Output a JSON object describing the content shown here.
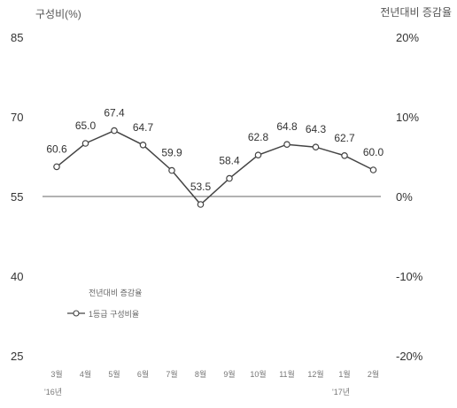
{
  "chart_data": {
    "type": "line",
    "left_axis_title": "구성비(%)",
    "right_axis_title": "전년대비 증감율",
    "left_ticks": [
      "85",
      "70",
      "55",
      "40",
      "25"
    ],
    "right_ticks": [
      "20%",
      "10%",
      "0%",
      "-10%",
      "-20%"
    ],
    "ylim_left": [
      25,
      85
    ],
    "ylim_right": [
      -20,
      20
    ],
    "categories": [
      "3월",
      "4월",
      "5월",
      "6월",
      "7월",
      "8월",
      "9월",
      "10월",
      "11월",
      "12월",
      "1월",
      "2월"
    ],
    "year_labels": [
      {
        "text": "'16년",
        "category_index": 0
      },
      {
        "text": "'17년",
        "category_index": 10
      }
    ],
    "series": [
      {
        "name": "1등급 구성비율",
        "axis": "left",
        "marker": "hollow-circle",
        "values": [
          60.6,
          65.0,
          67.4,
          64.7,
          59.9,
          53.5,
          58.4,
          62.8,
          64.8,
          64.3,
          62.7,
          60.0
        ]
      }
    ],
    "legend": {
      "placement": "bottom-left",
      "entries": [
        "전년대비 증감율",
        "1등급 구성비율"
      ]
    },
    "reference_line": {
      "axis": "right",
      "value": 0
    },
    "grid": false,
    "colors": {
      "line": "#444444",
      "reference": "#666666",
      "marker_fill": "#ffffff",
      "text": "#333333"
    }
  }
}
